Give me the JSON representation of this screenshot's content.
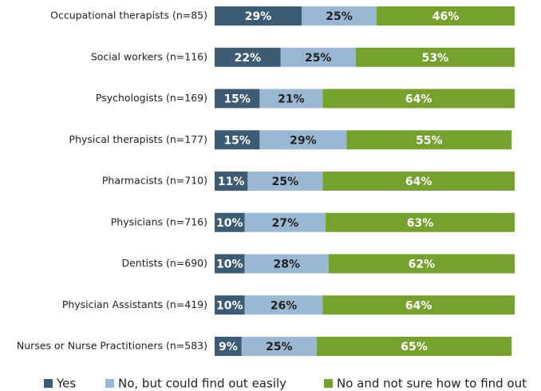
{
  "chart_data": {
    "type": "stacked_bar_horizontal",
    "categories": [
      "Occupational therapists (n=85)",
      "Social workers (n=116)",
      "Psychologists (n=169)",
      "Physical therapists (n=177)",
      "Pharmacists (n=710)",
      "Physicians (n=716)",
      "Dentists (n=690)",
      "Physician Assistants (n=419)",
      "Nurses or Nurse Practitioners (n=583)"
    ],
    "series": [
      {
        "name": "Yes",
        "color": "#3e5b74",
        "values": [
          29,
          22,
          15,
          15,
          11,
          10,
          10,
          10,
          9
        ],
        "value_labels": [
          "29%",
          "22%",
          "15%",
          "15%",
          "11%",
          "10%",
          "10%",
          "10%",
          "9%"
        ]
      },
      {
        "name": "No, but could find out easily",
        "color": "#9ab8d4",
        "values": [
          25,
          25,
          21,
          29,
          25,
          27,
          28,
          26,
          25
        ],
        "value_labels": [
          "25%",
          "25%",
          "21%",
          "29%",
          "25%",
          "27%",
          "28%",
          "26%",
          "25%"
        ]
      },
      {
        "name": "No and not sure how to find out",
        "color": "#76a12f",
        "values": [
          46,
          53,
          64,
          55,
          64,
          63,
          62,
          64,
          65
        ],
        "value_labels": [
          "46%",
          "53%",
          "64%",
          "55%",
          "64%",
          "63%",
          "62%",
          "64%",
          "65%"
        ]
      }
    ],
    "xlim": [
      0,
      100
    ],
    "legend": "bottom"
  }
}
